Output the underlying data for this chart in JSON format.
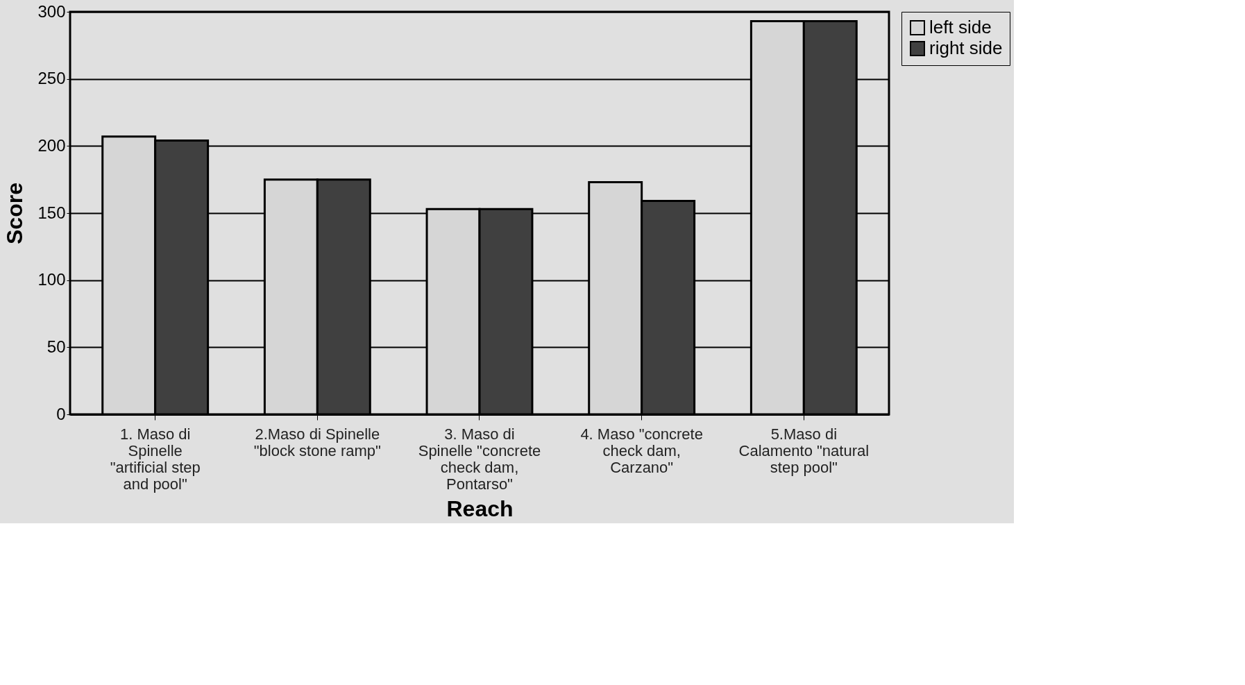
{
  "chart_data": {
    "type": "bar",
    "xlabel": "Reach",
    "ylabel": "Score",
    "categories": [
      "1. Maso di Spinelle \"artificial step and pool\"",
      "2.Maso di Spinelle \"block stone ramp\"",
      "3. Maso di Spinelle \"concrete check dam, Pontarso\"",
      "4. Maso \"concrete check dam, Carzano\"",
      "5.Maso di Calamento \"natural step pool\""
    ],
    "series": [
      {
        "name": "left side",
        "color": "#d6d6d6",
        "values": [
          207,
          175,
          153,
          173,
          293
        ]
      },
      {
        "name": "right side",
        "color": "#404040",
        "values": [
          204,
          175,
          153,
          159,
          293
        ]
      }
    ],
    "ylim": [
      0,
      300
    ],
    "yticks": [
      0,
      50,
      100,
      150,
      200,
      250,
      300
    ],
    "grid": "y",
    "legend": "right"
  }
}
